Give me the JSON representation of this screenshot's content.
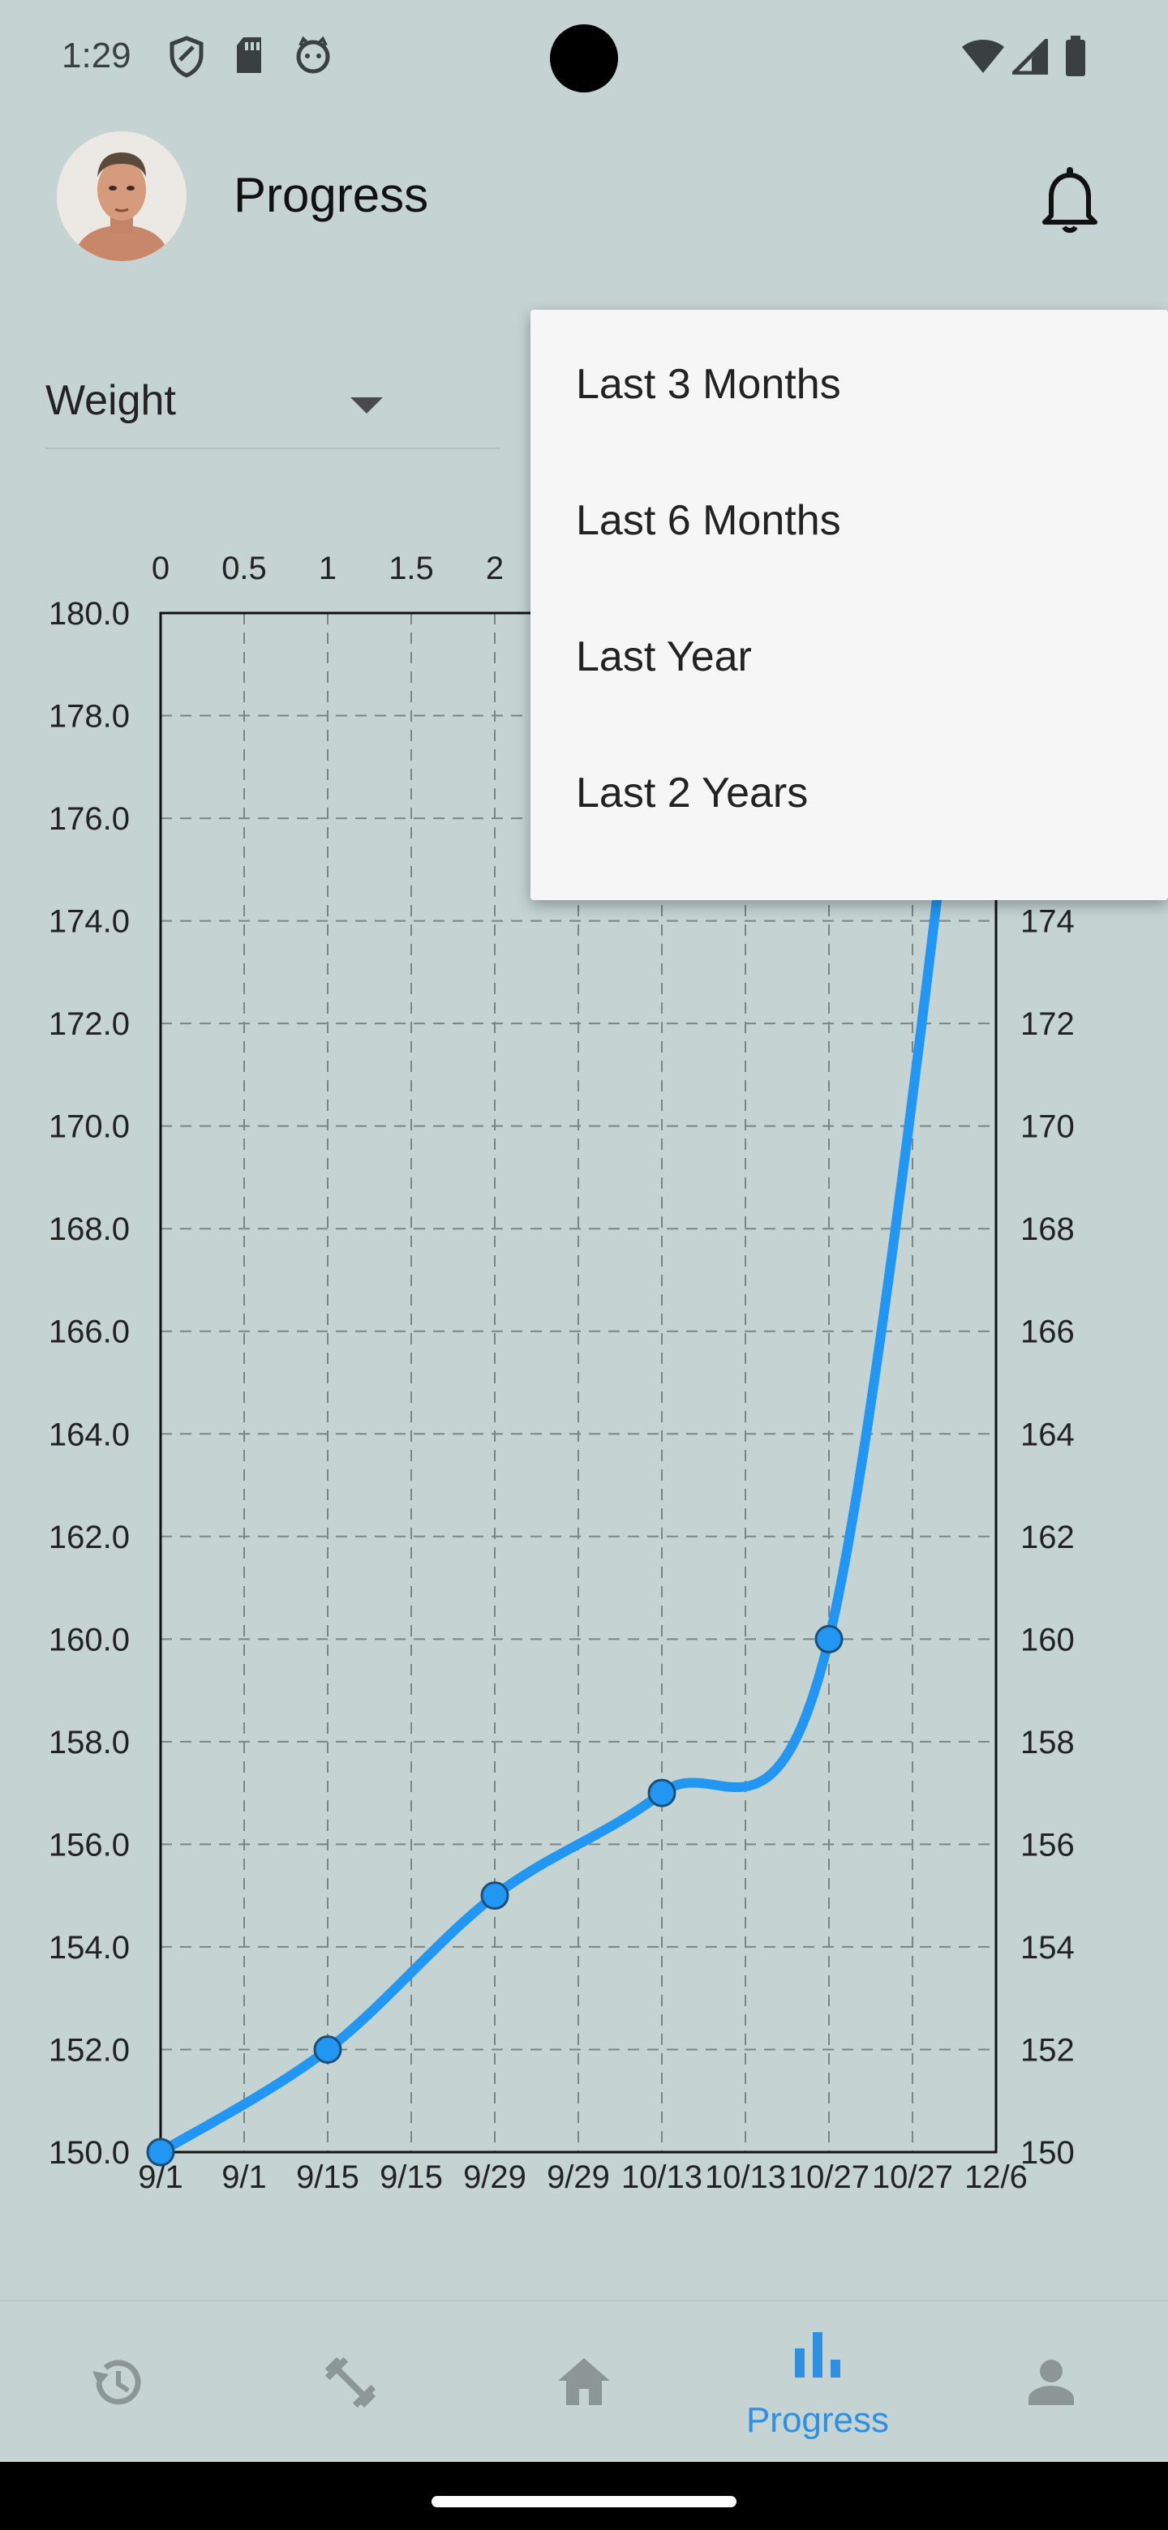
{
  "status_bar": {
    "time": "1:29",
    "left_icons": [
      "shield-icon",
      "sd-card-icon",
      "cat-face-icon"
    ],
    "right_icons": [
      "wifi-icon",
      "cellular-signal-icon",
      "battery-icon"
    ]
  },
  "app_bar": {
    "title": "Progress",
    "avatar": "profile-photo",
    "notification_icon": "bell-icon"
  },
  "metric_select": {
    "value": "Weight",
    "icon": "caret-down-icon"
  },
  "range_menu": {
    "items": [
      {
        "label": "Last 3 Months"
      },
      {
        "label": "Last 6 Months"
      },
      {
        "label": "Last Year"
      },
      {
        "label": "Last 2 Years"
      }
    ]
  },
  "chart_data": {
    "type": "line",
    "title": "",
    "color": "#2196f3",
    "grid": true,
    "top_axis_ticks": [
      "0",
      "0.5",
      "1",
      "1.5",
      "2"
    ],
    "bottom_axis_ticks": [
      "9/1",
      "9/1",
      "9/15",
      "9/15",
      "9/29",
      "9/29",
      "10/13",
      "10/13",
      "10/27",
      "10/27",
      "12/6"
    ],
    "left_axis_ticks": [
      "150.0",
      "152.0",
      "154.0",
      "156.0",
      "158.0",
      "160.0",
      "162.0",
      "164.0",
      "166.0",
      "168.0",
      "170.0",
      "172.0",
      "174.0",
      "176.0",
      "178.0",
      "180.0"
    ],
    "right_axis_ticks": [
      "150",
      "152",
      "154",
      "156",
      "158",
      "160",
      "162",
      "164",
      "166",
      "168",
      "170",
      "172",
      "174"
    ],
    "ylim": [
      150,
      180
    ],
    "x_index_range": [
      0,
      10
    ],
    "series": [
      {
        "x_index": [
          0,
          2,
          4,
          6,
          8,
          10
        ],
        "x_labels": [
          "9/1",
          "9/15",
          "9/29",
          "10/13",
          "10/27",
          "12/6"
        ],
        "values": [
          150,
          152,
          155,
          157,
          160,
          184
        ]
      }
    ]
  },
  "bottom_nav": {
    "items": [
      {
        "icon": "history-icon",
        "label": "",
        "active": false
      },
      {
        "icon": "dumbbell-icon",
        "label": "",
        "active": false
      },
      {
        "icon": "home-icon",
        "label": "",
        "active": false
      },
      {
        "icon": "bar-chart-icon",
        "label": "Progress",
        "active": true
      },
      {
        "icon": "person-icon",
        "label": "",
        "active": false
      }
    ],
    "active_color": "#2f8fe0",
    "inactive_color": "#8c9696"
  }
}
